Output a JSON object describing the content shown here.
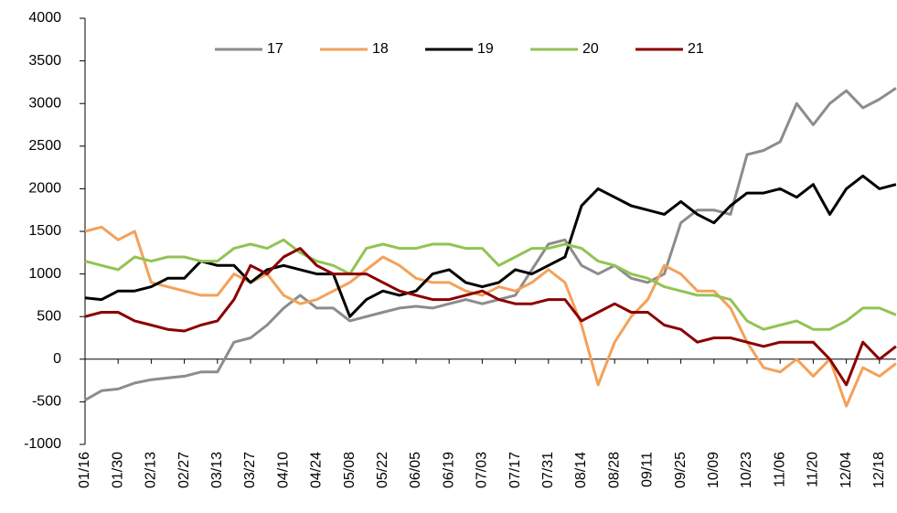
{
  "chart_data": {
    "type": "line",
    "categories": [
      "01/16",
      null,
      "01/30",
      null,
      "02/13",
      null,
      "02/27",
      null,
      "03/13",
      null,
      "03/27",
      null,
      "04/10",
      null,
      "04/24",
      null,
      "05/08",
      null,
      "05/22",
      null,
      "06/05",
      null,
      "06/19",
      null,
      "07/03",
      null,
      "07/17",
      null,
      "07/31",
      null,
      "08/14",
      null,
      "08/28",
      null,
      "09/11",
      null,
      "09/25",
      null,
      "10/09",
      null,
      "10/23",
      null,
      "11/06",
      null,
      "11/20",
      null,
      "12/04",
      null,
      "12/18",
      null
    ],
    "series": [
      {
        "name": "17",
        "color": "#8c8c8c",
        "values": [
          -480,
          -370,
          -350,
          -280,
          -240,
          -220,
          -200,
          -150,
          -150,
          200,
          250,
          400,
          600,
          750,
          600,
          600,
          450,
          500,
          550,
          600,
          620,
          600,
          650,
          700,
          650,
          700,
          750,
          1050,
          1350,
          1400,
          1100,
          1000,
          1100,
          950,
          900,
          1000,
          1600,
          1750,
          1750,
          1700,
          2400,
          2450,
          2550,
          3000,
          2750,
          3000,
          3150,
          2950,
          3050,
          3180
        ]
      },
      {
        "name": "18",
        "color": "#f4a15a",
        "values": [
          1500,
          1550,
          1400,
          1500,
          900,
          850,
          800,
          750,
          750,
          1000,
          900,
          1000,
          750,
          650,
          700,
          800,
          900,
          1050,
          1200,
          1100,
          950,
          900,
          900,
          800,
          750,
          850,
          800,
          900,
          1050,
          900,
          400,
          -300,
          200,
          500,
          700,
          1100,
          1000,
          800,
          800,
          600,
          200,
          -100,
          -150,
          0,
          -200,
          0,
          -550,
          -100,
          -200,
          -50
        ]
      },
      {
        "name": "19",
        "color": "#000000",
        "values": [
          720,
          700,
          800,
          800,
          850,
          950,
          950,
          1150,
          1100,
          1100,
          900,
          1050,
          1100,
          1050,
          1000,
          1000,
          500,
          700,
          800,
          750,
          800,
          1000,
          1050,
          900,
          850,
          900,
          1050,
          1000,
          1100,
          1200,
          1800,
          2000,
          1900,
          1800,
          1750,
          1700,
          1850,
          1700,
          1600,
          1800,
          1950,
          1950,
          2000,
          1900,
          2050,
          1700,
          2000,
          2150,
          2000,
          2050
        ]
      },
      {
        "name": "20",
        "color": "#92c353",
        "values": [
          1150,
          1100,
          1050,
          1200,
          1150,
          1200,
          1200,
          1150,
          1150,
          1300,
          1350,
          1300,
          1400,
          1250,
          1150,
          1100,
          1000,
          1300,
          1350,
          1300,
          1300,
          1350,
          1350,
          1300,
          1300,
          1100,
          1200,
          1300,
          1300,
          1350,
          1300,
          1150,
          1100,
          1000,
          950,
          850,
          800,
          750,
          750,
          700,
          450,
          350,
          400,
          450,
          350,
          350,
          450,
          600,
          600,
          520
        ]
      },
      {
        "name": "21",
        "color": "#8b0000",
        "values": [
          500,
          550,
          550,
          450,
          400,
          350,
          330,
          400,
          450,
          700,
          1100,
          1000,
          1200,
          1300,
          1100,
          1000,
          1000,
          1000,
          900,
          800,
          750,
          700,
          700,
          750,
          800,
          700,
          650,
          650,
          700,
          700,
          450,
          550,
          650,
          550,
          550,
          400,
          350,
          200,
          250,
          250,
          200,
          150,
          200,
          200,
          200,
          0,
          -300,
          200,
          0,
          150
        ]
      }
    ],
    "ylim": [
      -1000,
      4000
    ],
    "yticks": [
      -1000,
      -500,
      0,
      500,
      1000,
      1500,
      2000,
      2500,
      3000,
      3500,
      4000
    ],
    "legend": "top",
    "grid": false
  }
}
